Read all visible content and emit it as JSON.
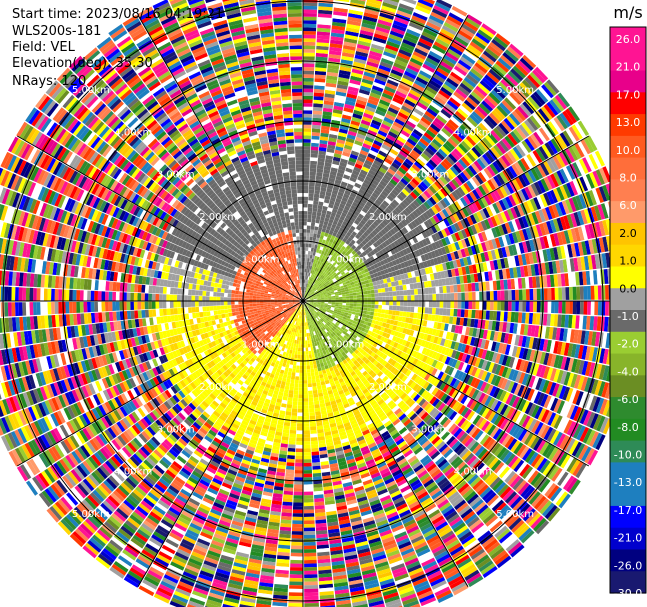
{
  "info": {
    "start_time": "Start time: 2023/08/16 04:19:21",
    "instrument": "WLS200s-181",
    "field": "Field: VEL",
    "elevation": "Elevation(deg): 35.30",
    "nrays": "NRays: 120"
  },
  "colorbar": {
    "unit": "m/s",
    "colors": [
      "#ff1493",
      "#ff1493",
      "#e8008a",
      "#ff0000",
      "#ff3a00",
      "#ff5a20",
      "#ff6e3a",
      "#ff7f50",
      "#ff9a6a",
      "#ffc400",
      "#ffd700",
      "#ffff00",
      "#a0a0a0",
      "#6a6a6a",
      "#9acd32",
      "#88b42a",
      "#6b8e23",
      "#2e8b2e",
      "#228b22",
      "#2e8b57",
      "#1e7fbf",
      "#1e7fbf",
      "#0000ff",
      "#0000cd",
      "#000080",
      "#191970"
    ],
    "ticks": [
      "26.0",
      "21.0",
      "17.0",
      "13.0",
      "10.0",
      "8.0",
      "6.0",
      "2.0",
      "1.0",
      "0.0",
      "-1.0",
      "-2.0",
      "-4.0",
      "-6.0",
      "-8.0",
      "-10.0",
      "-13.0",
      "-17.0",
      "-21.0",
      "-26.0",
      "-30.0"
    ]
  },
  "chart_data": {
    "type": "heatmap",
    "projection": "polar (PPI scan)",
    "field": "VEL",
    "unit": "m/s",
    "nrays": 120,
    "range_rings_km": [
      1.0,
      2.0,
      3.0,
      4.0,
      5.0
    ],
    "ring_labels": [
      "1.00km",
      "2.00km",
      "3.00km",
      "4.00km",
      "5.00km"
    ],
    "max_range_km": 5.5,
    "spokes_deg": [
      0,
      30,
      60,
      90,
      120,
      150,
      180,
      210,
      240,
      270,
      300,
      330
    ],
    "structure": {
      "valid_data_range_km": [
        0.0,
        2.5
      ],
      "noise_beyond_km": 2.5,
      "center_sector_toward_east_ms": -6,
      "center_sector_toward_west_ms": 13,
      "south_sector_ms": 2,
      "north_sector_ms": -2
    }
  }
}
